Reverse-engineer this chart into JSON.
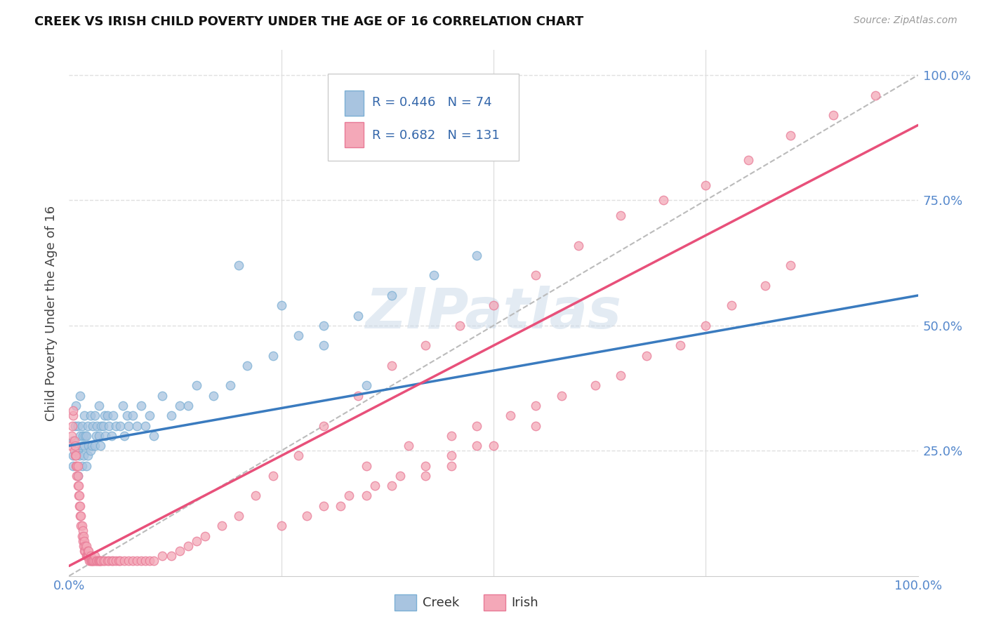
{
  "title": "CREEK VS IRISH CHILD POVERTY UNDER THE AGE OF 16 CORRELATION CHART",
  "source": "Source: ZipAtlas.com",
  "ylabel": "Child Poverty Under the Age of 16",
  "creek_R": 0.446,
  "creek_N": 74,
  "irish_R": 0.682,
  "irish_N": 131,
  "creek_color": "#a8c4e0",
  "creek_edge_color": "#7bafd4",
  "irish_color": "#f4a8b8",
  "irish_edge_color": "#e87a96",
  "creek_line_color": "#3a7bbf",
  "irish_line_color": "#e8507a",
  "ref_line_color": "#bbbbbb",
  "watermark_color": "#c8d8e8",
  "watermark_text": "ZIPatlas",
  "grid_color": "#e0e0e0",
  "background_color": "#ffffff",
  "title_color": "#111111",
  "axis_tick_color": "#5588cc",
  "creek_scatter_x": [
    0.005,
    0.005,
    0.005,
    0.007,
    0.008,
    0.01,
    0.01,
    0.01,
    0.012,
    0.013,
    0.013,
    0.015,
    0.015,
    0.015,
    0.016,
    0.017,
    0.018,
    0.018,
    0.019,
    0.02,
    0.02,
    0.022,
    0.022,
    0.023,
    0.025,
    0.025,
    0.027,
    0.028,
    0.03,
    0.03,
    0.032,
    0.033,
    0.035,
    0.035,
    0.037,
    0.038,
    0.04,
    0.042,
    0.043,
    0.045,
    0.047,
    0.05,
    0.052,
    0.055,
    0.06,
    0.063,
    0.065,
    0.068,
    0.07,
    0.075,
    0.08,
    0.085,
    0.09,
    0.095,
    0.1,
    0.11,
    0.12,
    0.13,
    0.14,
    0.15,
    0.17,
    0.19,
    0.21,
    0.24,
    0.27,
    0.3,
    0.34,
    0.38,
    0.43,
    0.48,
    0.2,
    0.25,
    0.3,
    0.35
  ],
  "creek_scatter_y": [
    0.22,
    0.24,
    0.27,
    0.3,
    0.34,
    0.2,
    0.25,
    0.3,
    0.24,
    0.28,
    0.36,
    0.22,
    0.26,
    0.3,
    0.28,
    0.24,
    0.26,
    0.32,
    0.28,
    0.22,
    0.28,
    0.24,
    0.3,
    0.26,
    0.25,
    0.32,
    0.26,
    0.3,
    0.26,
    0.32,
    0.28,
    0.3,
    0.28,
    0.34,
    0.26,
    0.3,
    0.3,
    0.32,
    0.28,
    0.32,
    0.3,
    0.28,
    0.32,
    0.3,
    0.3,
    0.34,
    0.28,
    0.32,
    0.3,
    0.32,
    0.3,
    0.34,
    0.3,
    0.32,
    0.28,
    0.36,
    0.32,
    0.34,
    0.34,
    0.38,
    0.36,
    0.38,
    0.42,
    0.44,
    0.48,
    0.5,
    0.52,
    0.56,
    0.6,
    0.64,
    0.62,
    0.54,
    0.46,
    0.38
  ],
  "irish_scatter_x": [
    0.002,
    0.003,
    0.004,
    0.005,
    0.005,
    0.006,
    0.006,
    0.007,
    0.007,
    0.008,
    0.008,
    0.009,
    0.009,
    0.01,
    0.01,
    0.01,
    0.011,
    0.011,
    0.012,
    0.012,
    0.013,
    0.013,
    0.014,
    0.014,
    0.015,
    0.015,
    0.016,
    0.016,
    0.017,
    0.017,
    0.018,
    0.018,
    0.019,
    0.019,
    0.02,
    0.02,
    0.021,
    0.022,
    0.022,
    0.023,
    0.023,
    0.024,
    0.025,
    0.025,
    0.026,
    0.027,
    0.028,
    0.029,
    0.03,
    0.03,
    0.032,
    0.033,
    0.034,
    0.035,
    0.036,
    0.037,
    0.038,
    0.04,
    0.042,
    0.045,
    0.047,
    0.05,
    0.052,
    0.055,
    0.058,
    0.06,
    0.065,
    0.07,
    0.075,
    0.08,
    0.085,
    0.09,
    0.095,
    0.1,
    0.11,
    0.12,
    0.13,
    0.14,
    0.15,
    0.16,
    0.18,
    0.2,
    0.22,
    0.24,
    0.27,
    0.3,
    0.34,
    0.38,
    0.42,
    0.46,
    0.5,
    0.55,
    0.6,
    0.65,
    0.7,
    0.75,
    0.8,
    0.85,
    0.9,
    0.95,
    0.35,
    0.4,
    0.45,
    0.48,
    0.52,
    0.55,
    0.58,
    0.62,
    0.65,
    0.68,
    0.72,
    0.75,
    0.78,
    0.82,
    0.85,
    0.3,
    0.33,
    0.36,
    0.39,
    0.42,
    0.45,
    0.48,
    0.25,
    0.28,
    0.32,
    0.35,
    0.38,
    0.42,
    0.45,
    0.5,
    0.55
  ],
  "irish_scatter_y": [
    0.26,
    0.28,
    0.3,
    0.32,
    0.33,
    0.25,
    0.27,
    0.24,
    0.26,
    0.22,
    0.24,
    0.2,
    0.22,
    0.18,
    0.2,
    0.22,
    0.16,
    0.18,
    0.14,
    0.16,
    0.12,
    0.14,
    0.1,
    0.12,
    0.08,
    0.1,
    0.07,
    0.09,
    0.06,
    0.08,
    0.05,
    0.07,
    0.05,
    0.06,
    0.04,
    0.06,
    0.04,
    0.04,
    0.05,
    0.04,
    0.05,
    0.03,
    0.03,
    0.04,
    0.03,
    0.03,
    0.03,
    0.03,
    0.03,
    0.04,
    0.03,
    0.03,
    0.03,
    0.03,
    0.03,
    0.03,
    0.03,
    0.03,
    0.03,
    0.03,
    0.03,
    0.03,
    0.03,
    0.03,
    0.03,
    0.03,
    0.03,
    0.03,
    0.03,
    0.03,
    0.03,
    0.03,
    0.03,
    0.03,
    0.04,
    0.04,
    0.05,
    0.06,
    0.07,
    0.08,
    0.1,
    0.12,
    0.16,
    0.2,
    0.24,
    0.3,
    0.36,
    0.42,
    0.46,
    0.5,
    0.54,
    0.6,
    0.66,
    0.72,
    0.75,
    0.78,
    0.83,
    0.88,
    0.92,
    0.96,
    0.22,
    0.26,
    0.28,
    0.3,
    0.32,
    0.34,
    0.36,
    0.38,
    0.4,
    0.44,
    0.46,
    0.5,
    0.54,
    0.58,
    0.62,
    0.14,
    0.16,
    0.18,
    0.2,
    0.22,
    0.24,
    0.26,
    0.1,
    0.12,
    0.14,
    0.16,
    0.18,
    0.2,
    0.22,
    0.26,
    0.3
  ],
  "creek_line": [
    0.0,
    1.0,
    0.26,
    0.56
  ],
  "irish_line": [
    0.0,
    1.0,
    0.02,
    0.9
  ],
  "ref_line": [
    0.0,
    1.0,
    0.0,
    1.0
  ]
}
